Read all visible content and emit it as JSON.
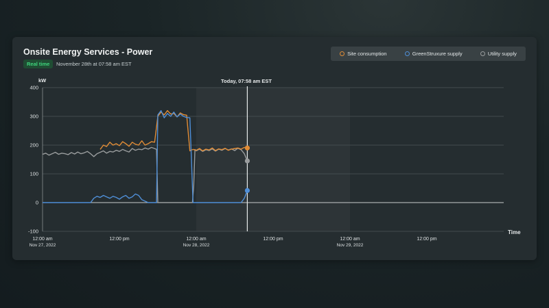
{
  "header": {
    "title": "Onsite Energy Services - Power",
    "badge": "Real time",
    "timestamp": "November 28th at 07:58 am EST"
  },
  "legend": [
    {
      "label": "Site consumption",
      "color": "#e08c36"
    },
    {
      "label": "GreenStruxure supply",
      "color": "#4f8fd8"
    },
    {
      "label": "Utility supply",
      "color": "#9a9d9e"
    }
  ],
  "now_label": "Today, 07:58 am EST",
  "chart_data": {
    "type": "line",
    "ylabel": "kW",
    "xlabel": "Time",
    "ylim": [
      -100,
      400
    ],
    "yticks": [
      -100,
      0,
      100,
      200,
      300,
      400
    ],
    "xlim": [
      0,
      72
    ],
    "xtick_labels": [
      {
        "x": 0,
        "line1": "12:00 am",
        "line2": "Nov 27, 2022"
      },
      {
        "x": 12,
        "line1": "12:00 pm",
        "line2": ""
      },
      {
        "x": 24,
        "line1": "12:00 am",
        "line2": "Nov 28, 2022"
      },
      {
        "x": 36,
        "line1": "12:00 pm",
        "line2": ""
      },
      {
        "x": 48,
        "line1": "12:00 am",
        "line2": "Nov 29, 2022"
      },
      {
        "x": 60,
        "line1": "12:00 pm",
        "line2": ""
      }
    ],
    "now_x": 31.97,
    "grid": true,
    "series": [
      {
        "name": "Site consumption",
        "color": "#e08c36",
        "x": [
          9,
          9.5,
          10,
          10.5,
          11,
          11.5,
          12,
          12.5,
          13,
          13.5,
          14,
          14.5,
          15,
          15.5,
          16,
          16.5,
          17,
          17.5,
          18,
          18.5,
          19,
          19.5,
          20,
          20.5,
          21,
          21.5,
          22,
          22.5,
          23,
          23.5,
          24,
          24.5,
          25,
          25.5,
          26,
          26.5,
          27,
          27.5,
          28,
          28.5,
          29,
          29.5,
          30,
          30.5,
          31,
          31.5,
          31.97
        ],
        "y": [
          185,
          200,
          195,
          210,
          200,
          205,
          198,
          212,
          205,
          196,
          210,
          203,
          200,
          215,
          200,
          205,
          212,
          210,
          300,
          315,
          305,
          320,
          308,
          310,
          298,
          312,
          306,
          304,
          180,
          185,
          182,
          188,
          180,
          186,
          183,
          190,
          181,
          187,
          184,
          189,
          182,
          186,
          188,
          190,
          186,
          192,
          190
        ]
      },
      {
        "name": "GreenStruxure supply",
        "color": "#4f8fd8",
        "x": [
          0,
          4,
          7.5,
          8,
          8.5,
          9,
          9.5,
          10,
          10.5,
          11,
          11.5,
          12,
          12.5,
          13,
          13.5,
          14,
          14.5,
          15,
          15.5,
          16,
          16.5,
          17,
          17.5,
          17.8,
          18,
          18.5,
          19,
          19.5,
          20,
          20.5,
          21,
          21.5,
          22,
          22.5,
          23,
          23.5,
          24,
          25,
          28,
          31,
          31.5,
          31.97
        ],
        "y": [
          0,
          0,
          0,
          15,
          22,
          18,
          25,
          20,
          15,
          22,
          18,
          12,
          20,
          25,
          15,
          20,
          30,
          25,
          10,
          5,
          0,
          0,
          0,
          0,
          305,
          320,
          295,
          310,
          300,
          315,
          298,
          308,
          300,
          296,
          295,
          0,
          0,
          0,
          0,
          0,
          15,
          42
        ]
      },
      {
        "name": "Utility supply",
        "color": "#9a9d9e",
        "x": [
          0,
          0.5,
          1,
          1.5,
          2,
          2.5,
          3,
          3.5,
          4,
          4.5,
          5,
          5.5,
          6,
          6.5,
          7,
          7.5,
          8,
          8.5,
          9,
          9.5,
          10,
          10.5,
          11,
          11.5,
          12,
          12.5,
          13,
          13.5,
          14,
          14.5,
          15,
          15.5,
          16,
          16.5,
          17,
          17.5,
          17.8,
          18,
          23.4,
          23.6,
          23.8,
          24,
          24.5,
          25,
          25.5,
          26,
          26.5,
          27,
          27.5,
          28,
          28.5,
          29,
          29.5,
          30,
          30.5,
          31,
          31.5,
          31.97
        ],
        "y": [
          168,
          172,
          165,
          170,
          175,
          168,
          172,
          170,
          167,
          174,
          169,
          176,
          170,
          173,
          178,
          170,
          160,
          170,
          175,
          180,
          172,
          178,
          176,
          182,
          178,
          185,
          180,
          176,
          188,
          182,
          186,
          184,
          190,
          186,
          192,
          188,
          185,
          0,
          0,
          60,
          185,
          180,
          186,
          178,
          184,
          181,
          187,
          179,
          186,
          182,
          188,
          183,
          187,
          181,
          189,
          184,
          170,
          145
        ]
      }
    ]
  }
}
